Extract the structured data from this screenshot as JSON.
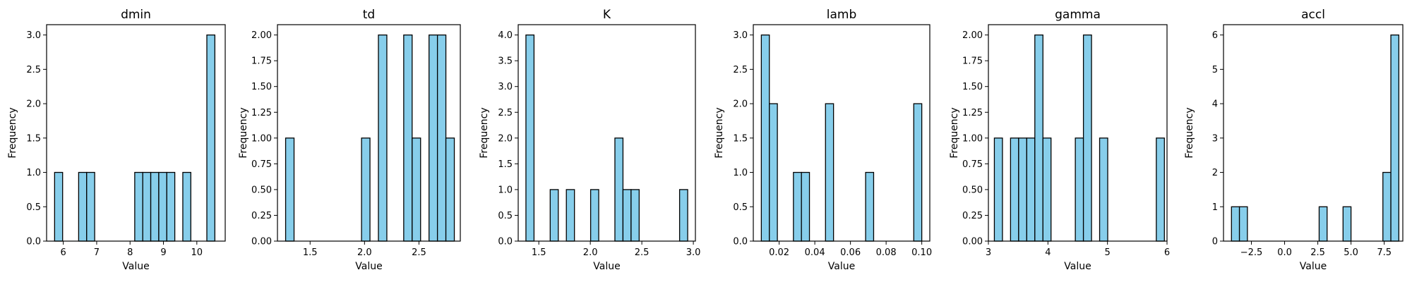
{
  "chart_data": [
    {
      "type": "bar",
      "title": "dmin",
      "xlabel": "Value",
      "ylabel": "Frequency",
      "xlim": [
        5.5,
        10.85
      ],
      "ylim": [
        0,
        3.15
      ],
      "xticks": [
        6,
        7,
        8,
        9,
        10
      ],
      "xtick_labels": [
        "6",
        "7",
        "8",
        "9",
        "10"
      ],
      "yticks": [
        0,
        0.5,
        1,
        1.5,
        2,
        2.5,
        3
      ],
      "ytick_labels": [
        "0.0",
        "0.5",
        "1.0",
        "1.5",
        "2.0",
        "2.5",
        "3.0"
      ],
      "bin_width": 0.24,
      "bin_starts": [
        5.74,
        6.46,
        6.7,
        8.14,
        8.38,
        8.62,
        8.86,
        9.1,
        9.58,
        10.3
      ],
      "values": [
        1,
        1,
        1,
        1,
        1,
        1,
        1,
        1,
        1,
        3
      ]
    },
    {
      "type": "bar",
      "title": "td",
      "xlabel": "Value",
      "ylabel": "Frequency",
      "xlim": [
        1.2,
        2.88
      ],
      "ylim": [
        0,
        2.1
      ],
      "xticks": [
        1.5,
        2.0,
        2.5
      ],
      "xtick_labels": [
        "1.5",
        "2.0",
        "2.5"
      ],
      "yticks": [
        0,
        0.25,
        0.5,
        0.75,
        1,
        1.25,
        1.5,
        1.75,
        2
      ],
      "ytick_labels": [
        "0.00",
        "0.25",
        "0.50",
        "0.75",
        "1.00",
        "1.25",
        "1.50",
        "1.75",
        "2.00"
      ],
      "bin_width": 0.0775,
      "bin_starts": [
        1.275,
        1.9725,
        2.1275,
        2.36,
        2.4375,
        2.5925,
        2.67,
        2.7475
      ],
      "values": [
        1,
        1,
        2,
        2,
        1,
        2,
        2,
        1
      ]
    },
    {
      "type": "bar",
      "title": "K",
      "xlabel": "Value",
      "ylabel": "Frequency",
      "xlim": [
        1.3,
        3.02
      ],
      "ylim": [
        0,
        4.2
      ],
      "xticks": [
        1.5,
        2.0,
        2.5,
        3.0
      ],
      "xtick_labels": [
        "1.5",
        "2.0",
        "2.5",
        "3.0"
      ],
      "yticks": [
        0,
        0.5,
        1,
        1.5,
        2,
        2.5,
        3,
        3.5,
        4
      ],
      "ytick_labels": [
        "0.0",
        "0.5",
        "1.0",
        "1.5",
        "2.0",
        "2.5",
        "3.0",
        "3.5",
        "4.0"
      ],
      "bin_width": 0.0785,
      "bin_starts": [
        1.375,
        1.6105,
        1.7675,
        2.003,
        2.2385,
        2.317,
        2.3955,
        2.8665
      ],
      "values": [
        4,
        1,
        1,
        1,
        2,
        1,
        1,
        1
      ]
    },
    {
      "type": "bar",
      "title": "lamb",
      "xlabel": "Value",
      "ylabel": "Frequency",
      "xlim": [
        0.0055,
        0.1045
      ],
      "ylim": [
        0,
        3.15
      ],
      "xticks": [
        0.02,
        0.04,
        0.06,
        0.08,
        0.1
      ],
      "xtick_labels": [
        "0.02",
        "0.04",
        "0.06",
        "0.08",
        "0.10"
      ],
      "yticks": [
        0,
        0.5,
        1,
        1.5,
        2,
        2.5,
        3
      ],
      "ytick_labels": [
        "0.0",
        "0.5",
        "1.0",
        "1.5",
        "2.0",
        "2.5",
        "3.0"
      ],
      "bin_width": 0.0045,
      "bin_starts": [
        0.01,
        0.0145,
        0.028,
        0.0325,
        0.046,
        0.0685,
        0.0955
      ],
      "values": [
        3,
        2,
        1,
        1,
        2,
        1,
        2
      ]
    },
    {
      "type": "bar",
      "title": "gamma",
      "xlabel": "Value",
      "ylabel": "Frequency",
      "xlim": [
        3.0,
        6.0
      ],
      "ylim": [
        0,
        2.1
      ],
      "xticks": [
        3,
        4,
        5,
        6
      ],
      "xtick_labels": [
        "3",
        "4",
        "5",
        "6"
      ],
      "yticks": [
        0,
        0.25,
        0.5,
        0.75,
        1,
        1.25,
        1.5,
        1.75,
        2
      ],
      "ytick_labels": [
        "0.00",
        "0.25",
        "0.50",
        "0.75",
        "1.00",
        "1.25",
        "1.50",
        "1.75",
        "2.00"
      ],
      "bin_width": 0.136,
      "bin_starts": [
        3.1,
        3.372,
        3.508,
        3.644,
        3.78,
        3.916,
        4.46,
        4.596,
        4.868,
        5.82
      ],
      "values": [
        1,
        1,
        1,
        1,
        2,
        1,
        1,
        2,
        1,
        1
      ]
    },
    {
      "type": "bar",
      "title": "accl",
      "xlabel": "Value",
      "ylabel": "Frequency",
      "xlim": [
        -4.6,
        8.9
      ],
      "ylim": [
        0,
        6.3
      ],
      "xticks": [
        -2.5,
        0.0,
        2.5,
        5.0,
        7.5
      ],
      "xtick_labels": [
        "−2.5",
        "0.0",
        "2.5",
        "5.0",
        "7.5"
      ],
      "yticks": [
        0,
        1,
        2,
        3,
        4,
        5,
        6
      ],
      "ytick_labels": [
        "0",
        "1",
        "2",
        "3",
        "4",
        "5",
        "6"
      ],
      "bin_width": 0.6,
      "bin_starts": [
        -4.0,
        -3.4,
        2.6,
        4.4,
        7.4,
        8.0
      ],
      "values": [
        1,
        1,
        1,
        1,
        2,
        6
      ]
    }
  ],
  "colors": {
    "bar_fill": "#87ceeb",
    "bar_edge": "#000000",
    "axes": "#000000"
  }
}
